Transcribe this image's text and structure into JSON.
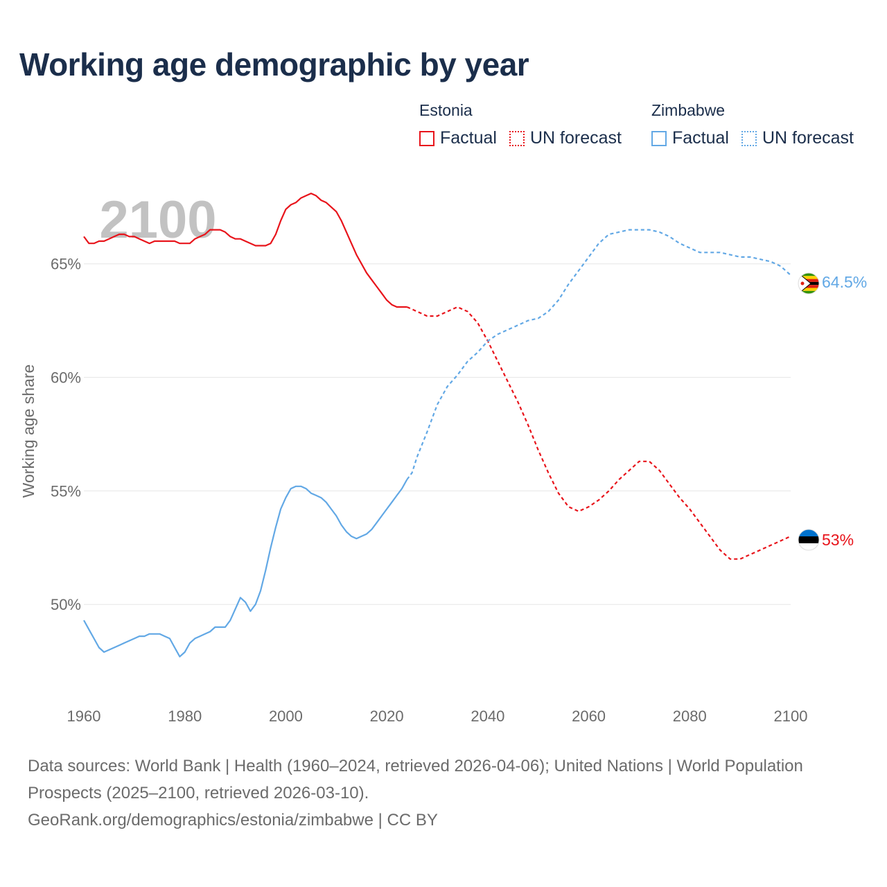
{
  "title": "Working age demographic by year",
  "legend": {
    "groups": [
      {
        "name": "Estonia",
        "factual": "Factual",
        "forecast": "UN forecast",
        "color": "#e8141b"
      },
      {
        "name": "Zimbabwe",
        "factual": "Factual",
        "forecast": "UN forecast",
        "color": "#62a8e5"
      }
    ]
  },
  "footer": {
    "line1": "Data sources: World Bank | Health (1960–2024, retrieved 2026-04-06); United Nations | World Population Prospects (2025–2100, retrieved 2026-03-10).",
    "line2": "GeoRank.org/demographics/estonia/zimbabwe | CC BY"
  },
  "chart_data": {
    "type": "line",
    "title": "Working age demographic by year",
    "xlabel": "",
    "ylabel": "Working age share",
    "year_watermark": "2100",
    "xlim": [
      1960,
      2100
    ],
    "ylim": [
      46.1,
      69.6
    ],
    "x_ticks": [
      1960,
      1980,
      2000,
      2020,
      2040,
      2060,
      2080,
      2100
    ],
    "x_tick_labels": [
      "1960",
      "1980",
      "2000",
      "2020",
      "2040",
      "2060",
      "2080",
      "2100"
    ],
    "y_ticks": [
      50,
      55,
      60,
      65
    ],
    "y_tick_labels": [
      "50%",
      "55%",
      "60%",
      "65%"
    ],
    "grid": true,
    "forecast_start": 2024,
    "series": [
      {
        "name": "Estonia",
        "color": "#e8141b",
        "end_label": "53%",
        "flag": "estonia",
        "points": [
          [
            1960,
            66.2
          ],
          [
            1961,
            65.9
          ],
          [
            1962,
            65.9
          ],
          [
            1963,
            66.0
          ],
          [
            1964,
            66.0
          ],
          [
            1965,
            66.1
          ],
          [
            1966,
            66.2
          ],
          [
            1967,
            66.3
          ],
          [
            1968,
            66.3
          ],
          [
            1969,
            66.2
          ],
          [
            1970,
            66.2
          ],
          [
            1971,
            66.1
          ],
          [
            1972,
            66.0
          ],
          [
            1973,
            65.9
          ],
          [
            1974,
            66.0
          ],
          [
            1975,
            66.0
          ],
          [
            1976,
            66.0
          ],
          [
            1977,
            66.0
          ],
          [
            1978,
            66.0
          ],
          [
            1979,
            65.9
          ],
          [
            1980,
            65.9
          ],
          [
            1981,
            65.9
          ],
          [
            1982,
            66.1
          ],
          [
            1983,
            66.2
          ],
          [
            1984,
            66.3
          ],
          [
            1985,
            66.5
          ],
          [
            1986,
            66.5
          ],
          [
            1987,
            66.5
          ],
          [
            1988,
            66.4
          ],
          [
            1989,
            66.2
          ],
          [
            1990,
            66.1
          ],
          [
            1991,
            66.1
          ],
          [
            1992,
            66.0
          ],
          [
            1993,
            65.9
          ],
          [
            1994,
            65.8
          ],
          [
            1995,
            65.8
          ],
          [
            1996,
            65.8
          ],
          [
            1997,
            65.9
          ],
          [
            1998,
            66.3
          ],
          [
            1999,
            66.9
          ],
          [
            2000,
            67.4
          ],
          [
            2001,
            67.6
          ],
          [
            2002,
            67.7
          ],
          [
            2003,
            67.9
          ],
          [
            2004,
            68.0
          ],
          [
            2005,
            68.1
          ],
          [
            2006,
            68.0
          ],
          [
            2007,
            67.8
          ],
          [
            2008,
            67.7
          ],
          [
            2009,
            67.5
          ],
          [
            2010,
            67.3
          ],
          [
            2011,
            66.9
          ],
          [
            2012,
            66.4
          ],
          [
            2013,
            65.9
          ],
          [
            2014,
            65.4
          ],
          [
            2015,
            65.0
          ],
          [
            2016,
            64.6
          ],
          [
            2017,
            64.3
          ],
          [
            2018,
            64.0
          ],
          [
            2019,
            63.7
          ],
          [
            2020,
            63.4
          ],
          [
            2021,
            63.2
          ],
          [
            2022,
            63.1
          ],
          [
            2023,
            63.1
          ],
          [
            2024,
            63.1
          ],
          [
            2026,
            62.9
          ],
          [
            2028,
            62.7
          ],
          [
            2030,
            62.7
          ],
          [
            2032,
            62.9
          ],
          [
            2034,
            63.1
          ],
          [
            2036,
            62.9
          ],
          [
            2038,
            62.4
          ],
          [
            2040,
            61.6
          ],
          [
            2042,
            60.7
          ],
          [
            2044,
            59.8
          ],
          [
            2046,
            58.9
          ],
          [
            2048,
            57.9
          ],
          [
            2050,
            56.8
          ],
          [
            2052,
            55.8
          ],
          [
            2054,
            54.9
          ],
          [
            2056,
            54.3
          ],
          [
            2058,
            54.1
          ],
          [
            2060,
            54.3
          ],
          [
            2062,
            54.6
          ],
          [
            2064,
            55.0
          ],
          [
            2066,
            55.5
          ],
          [
            2068,
            55.9
          ],
          [
            2070,
            56.3
          ],
          [
            2072,
            56.3
          ],
          [
            2074,
            55.9
          ],
          [
            2076,
            55.3
          ],
          [
            2078,
            54.7
          ],
          [
            2080,
            54.2
          ],
          [
            2082,
            53.6
          ],
          [
            2084,
            53.0
          ],
          [
            2086,
            52.4
          ],
          [
            2088,
            52.0
          ],
          [
            2090,
            52.0
          ],
          [
            2092,
            52.2
          ],
          [
            2094,
            52.4
          ],
          [
            2096,
            52.6
          ],
          [
            2098,
            52.8
          ],
          [
            2100,
            53.0
          ]
        ]
      },
      {
        "name": "Zimbabwe",
        "color": "#62a8e5",
        "end_label": "64.5%",
        "flag": "zimbabwe",
        "points": [
          [
            1960,
            49.3
          ],
          [
            1961,
            48.9
          ],
          [
            1962,
            48.5
          ],
          [
            1963,
            48.1
          ],
          [
            1964,
            47.9
          ],
          [
            1965,
            48.0
          ],
          [
            1966,
            48.1
          ],
          [
            1967,
            48.2
          ],
          [
            1968,
            48.3
          ],
          [
            1969,
            48.4
          ],
          [
            1970,
            48.5
          ],
          [
            1971,
            48.6
          ],
          [
            1972,
            48.6
          ],
          [
            1973,
            48.7
          ],
          [
            1974,
            48.7
          ],
          [
            1975,
            48.7
          ],
          [
            1976,
            48.6
          ],
          [
            1977,
            48.5
          ],
          [
            1978,
            48.1
          ],
          [
            1979,
            47.7
          ],
          [
            1980,
            47.9
          ],
          [
            1981,
            48.3
          ],
          [
            1982,
            48.5
          ],
          [
            1983,
            48.6
          ],
          [
            1984,
            48.7
          ],
          [
            1985,
            48.8
          ],
          [
            1986,
            49.0
          ],
          [
            1987,
            49.0
          ],
          [
            1988,
            49.0
          ],
          [
            1989,
            49.3
          ],
          [
            1990,
            49.8
          ],
          [
            1991,
            50.3
          ],
          [
            1992,
            50.1
          ],
          [
            1993,
            49.7
          ],
          [
            1994,
            50.0
          ],
          [
            1995,
            50.6
          ],
          [
            1996,
            51.5
          ],
          [
            1997,
            52.5
          ],
          [
            1998,
            53.4
          ],
          [
            1999,
            54.2
          ],
          [
            2000,
            54.7
          ],
          [
            2001,
            55.1
          ],
          [
            2002,
            55.2
          ],
          [
            2003,
            55.2
          ],
          [
            2004,
            55.1
          ],
          [
            2005,
            54.9
          ],
          [
            2006,
            54.8
          ],
          [
            2007,
            54.7
          ],
          [
            2008,
            54.5
          ],
          [
            2009,
            54.2
          ],
          [
            2010,
            53.9
          ],
          [
            2011,
            53.5
          ],
          [
            2012,
            53.2
          ],
          [
            2013,
            53.0
          ],
          [
            2014,
            52.9
          ],
          [
            2015,
            53.0
          ],
          [
            2016,
            53.1
          ],
          [
            2017,
            53.3
          ],
          [
            2018,
            53.6
          ],
          [
            2019,
            53.9
          ],
          [
            2020,
            54.2
          ],
          [
            2021,
            54.5
          ],
          [
            2022,
            54.8
          ],
          [
            2023,
            55.1
          ],
          [
            2024,
            55.5
          ],
          [
            2025,
            55.8
          ],
          [
            2026,
            56.5
          ],
          [
            2028,
            57.6
          ],
          [
            2030,
            58.8
          ],
          [
            2032,
            59.6
          ],
          [
            2034,
            60.1
          ],
          [
            2036,
            60.7
          ],
          [
            2038,
            61.1
          ],
          [
            2040,
            61.6
          ],
          [
            2042,
            61.9
          ],
          [
            2044,
            62.1
          ],
          [
            2046,
            62.3
          ],
          [
            2048,
            62.5
          ],
          [
            2050,
            62.6
          ],
          [
            2052,
            62.9
          ],
          [
            2054,
            63.4
          ],
          [
            2056,
            64.1
          ],
          [
            2058,
            64.7
          ],
          [
            2060,
            65.3
          ],
          [
            2062,
            65.9
          ],
          [
            2064,
            66.3
          ],
          [
            2066,
            66.4
          ],
          [
            2068,
            66.5
          ],
          [
            2070,
            66.5
          ],
          [
            2072,
            66.5
          ],
          [
            2074,
            66.4
          ],
          [
            2076,
            66.2
          ],
          [
            2078,
            65.9
          ],
          [
            2080,
            65.7
          ],
          [
            2082,
            65.5
          ],
          [
            2084,
            65.5
          ],
          [
            2086,
            65.5
          ],
          [
            2088,
            65.4
          ],
          [
            2090,
            65.3
          ],
          [
            2092,
            65.3
          ],
          [
            2094,
            65.2
          ],
          [
            2096,
            65.1
          ],
          [
            2098,
            64.9
          ],
          [
            2100,
            64.5
          ]
        ]
      }
    ]
  }
}
